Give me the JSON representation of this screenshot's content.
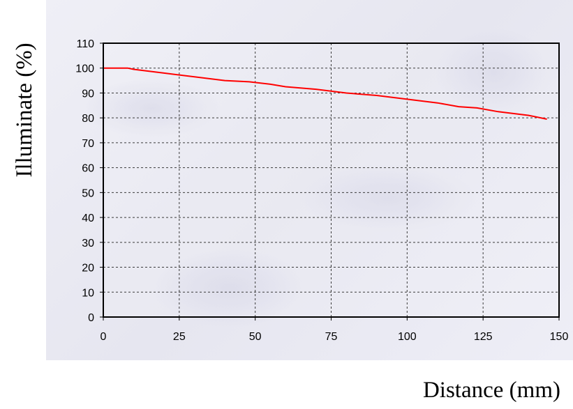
{
  "chart_data": {
    "type": "line",
    "xlabel": "Distance (mm)",
    "ylabel": "Illuminate (%)",
    "xlim": [
      0,
      150
    ],
    "ylim": [
      0,
      110
    ],
    "x_ticks": [
      0,
      25,
      50,
      75,
      100,
      125,
      150
    ],
    "y_ticks": [
      0,
      10,
      20,
      30,
      40,
      50,
      60,
      70,
      80,
      90,
      100,
      110
    ],
    "grid": true,
    "grid_style": "dashed",
    "series": [
      {
        "color": "#ff0000",
        "x": [
          0,
          8,
          10,
          20,
          30,
          40,
          48,
          55,
          60,
          70,
          80,
          90,
          100,
          110,
          117,
          123,
          130,
          140,
          146
        ],
        "y": [
          100,
          100,
          99.5,
          98,
          96.5,
          95,
          94.5,
          93.5,
          92.5,
          91.5,
          90,
          89,
          87.5,
          86,
          84.5,
          84,
          82.5,
          81,
          79.5
        ]
      }
    ]
  }
}
